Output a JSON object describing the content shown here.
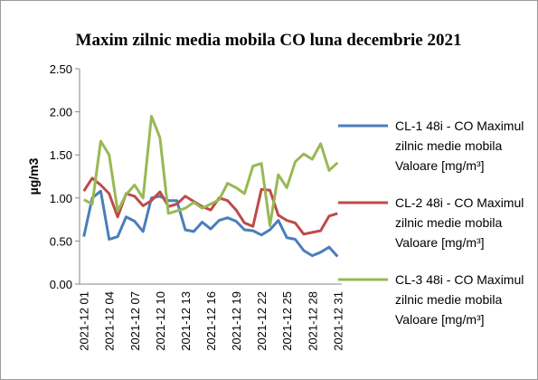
{
  "chart_data": {
    "type": "line",
    "title": "Maxim zilnic media mobila CO luna decembrie 2021",
    "y_label": "µg/m3",
    "categories": [
      "2021-12 01",
      null,
      null,
      "2021-12 04",
      null,
      null,
      "2021-12 07",
      null,
      null,
      "2021-12 10",
      null,
      null,
      "2021-12 13",
      null,
      null,
      "2021-12 16",
      null,
      null,
      "2021-12 19",
      null,
      null,
      "2021-12 22",
      null,
      null,
      "2021-12 25",
      null,
      null,
      "2021-12 28",
      null,
      null,
      "2021-12 31"
    ],
    "series": [
      {
        "name": "CL-1 48i - CO Maximul zilnic medie mobila Valoare [mg/m³]",
        "color": "#4a7ebb",
        "values": [
          0.55,
          1.0,
          1.08,
          0.52,
          0.55,
          0.78,
          0.73,
          0.61,
          1.0,
          1.02,
          0.97,
          0.97,
          0.63,
          0.61,
          0.72,
          0.64,
          0.74,
          0.77,
          0.73,
          0.63,
          0.62,
          0.57,
          0.63,
          0.74,
          0.54,
          0.52,
          0.39,
          0.33,
          0.37,
          0.43,
          0.32
        ]
      },
      {
        "name": "CL-2 48i - CO Maximul zilnic medie mobila Valoare [mg/m³]",
        "color": "#be4b48",
        "values": [
          1.08,
          1.23,
          1.15,
          1.05,
          0.78,
          1.05,
          1.02,
          0.91,
          0.97,
          1.07,
          0.9,
          0.93,
          1.02,
          0.96,
          0.9,
          0.86,
          1.0,
          0.97,
          0.86,
          0.71,
          0.67,
          1.1,
          1.09,
          0.8,
          0.74,
          0.71,
          0.58,
          0.6,
          0.62,
          0.79,
          0.82
        ]
      },
      {
        "name": "CL-3 48i - CO Maximul zilnic medie mobila Valoare [mg/m³]",
        "color": "#98b954",
        "values": [
          0.98,
          0.93,
          1.66,
          1.5,
          0.85,
          1.04,
          1.15,
          1.0,
          1.95,
          1.7,
          0.82,
          0.85,
          0.88,
          0.95,
          0.88,
          0.93,
          0.98,
          1.17,
          1.12,
          1.05,
          1.37,
          1.4,
          0.68,
          1.27,
          1.12,
          1.42,
          1.51,
          1.45,
          1.63,
          1.32,
          1.41
        ]
      }
    ],
    "ylim": [
      0,
      2.5
    ],
    "yticks": [
      {
        "value": 0,
        "label": "0.00"
      },
      {
        "value": 0.5,
        "label": "0.50"
      },
      {
        "value": 1,
        "label": "1.00"
      },
      {
        "value": 1.5,
        "label": "1.50"
      },
      {
        "value": 2,
        "label": "2.00"
      },
      {
        "value": 2.5,
        "label": "2.50"
      }
    ],
    "grid": false,
    "legend": "right"
  }
}
